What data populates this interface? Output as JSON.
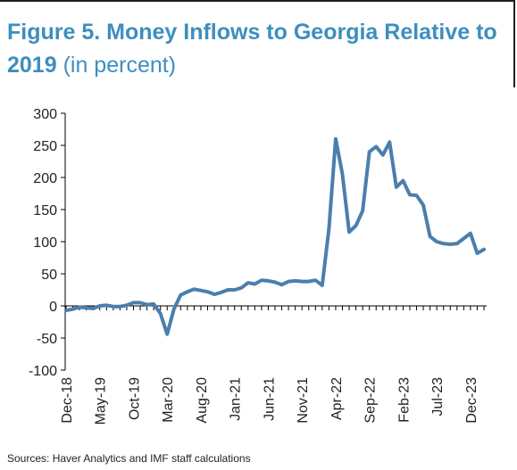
{
  "title": {
    "bold": "Figure 5. Money Inflows to Georgia Relative to 2019",
    "light": "(in percent)"
  },
  "source": "Sources: Haver Analytics and IMF staff calculations",
  "colors": {
    "title": "#3d8ebf",
    "line": "#4a7fad",
    "axis": "#000000"
  },
  "chart_data": {
    "type": "line",
    "title": "Figure 5. Money Inflows to Georgia Relative to 2019 (in percent)",
    "xlabel": "",
    "ylabel": "",
    "ylim": [
      -100,
      300
    ],
    "yticks": [
      300,
      250,
      200,
      150,
      100,
      50,
      0,
      -50,
      -100
    ],
    "xtick_labels": [
      "Dec-18",
      "May-19",
      "Oct-19",
      "Mar-20",
      "Aug-20",
      "Jan-21",
      "Jun-21",
      "Nov-21",
      "Apr-22",
      "Sep-22",
      "Feb-23",
      "Jul-23",
      "Dec-23"
    ],
    "grid": false,
    "legend": "none",
    "series": [
      {
        "x": [
          "Dec-18",
          "Jan-19",
          "Feb-19",
          "Mar-19",
          "Apr-19",
          "May-19",
          "Jun-19",
          "Jul-19",
          "Aug-19",
          "Sep-19",
          "Oct-19",
          "Nov-19",
          "Dec-19",
          "Jan-20",
          "Feb-20",
          "Mar-20",
          "Apr-20",
          "May-20",
          "Jun-20",
          "Jul-20",
          "Aug-20",
          "Sep-20",
          "Oct-20",
          "Nov-20",
          "Dec-20",
          "Jan-21",
          "Feb-21",
          "Mar-21",
          "Apr-21",
          "May-21",
          "Jun-21",
          "Jul-21",
          "Aug-21",
          "Sep-21",
          "Oct-21",
          "Nov-21",
          "Dec-21",
          "Jan-22",
          "Feb-22",
          "Mar-22",
          "Apr-22",
          "May-22",
          "Jun-22",
          "Jul-22",
          "Aug-22",
          "Sep-22",
          "Oct-22",
          "Nov-22",
          "Dec-22",
          "Jan-23",
          "Feb-23",
          "Mar-23",
          "Apr-23",
          "May-23",
          "Jun-23",
          "Jul-23",
          "Aug-23",
          "Sep-23",
          "Oct-23",
          "Nov-23",
          "Dec-23",
          "Jan-24",
          "Feb-24"
        ],
        "values": [
          -7,
          -5,
          -2,
          -3,
          -4,
          0,
          1,
          -1,
          -1,
          1,
          5,
          5,
          2,
          3,
          -12,
          -44,
          -5,
          17,
          22,
          26,
          24,
          22,
          18,
          21,
          25,
          25,
          28,
          36,
          34,
          40,
          39,
          37,
          33,
          38,
          39,
          38,
          38,
          40,
          32,
          120,
          260,
          205,
          115,
          125,
          148,
          240,
          248,
          235,
          255,
          185,
          195,
          173,
          172,
          157,
          108,
          100,
          97,
          96,
          97,
          105,
          113,
          82,
          88
        ]
      }
    ]
  }
}
